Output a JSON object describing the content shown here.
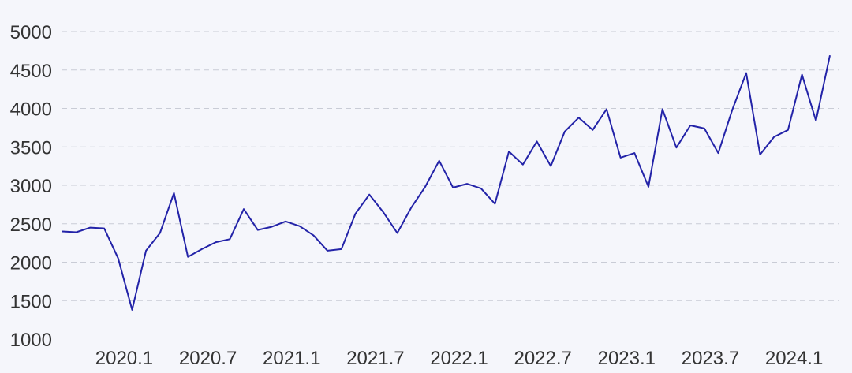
{
  "chart_data": {
    "type": "line",
    "title": "",
    "xlabel": "",
    "ylabel": "",
    "ylim": [
      1000,
      5000
    ],
    "yticks": [
      1000,
      1500,
      2000,
      2500,
      3000,
      3500,
      4000,
      4500,
      5000
    ],
    "grid": true,
    "line_color": "#2323a8",
    "xtick_labels": [
      {
        "label": "2020.1",
        "index": 5
      },
      {
        "label": "2020.7",
        "index": 11
      },
      {
        "label": "2021.1",
        "index": 17
      },
      {
        "label": "2021.7",
        "index": 23
      },
      {
        "label": "2022.1",
        "index": 29
      },
      {
        "label": "2022.7",
        "index": 35
      },
      {
        "label": "2023.1",
        "index": 41
      },
      {
        "label": "2023.7",
        "index": 47
      },
      {
        "label": "2024.1",
        "index": 53
      }
    ],
    "series": [
      {
        "values": [
          2400,
          2390,
          2450,
          2440,
          2050,
          1380,
          2150,
          2380,
          2900,
          2070,
          2170,
          2260,
          2300,
          2690,
          2420,
          2460,
          2530,
          2470,
          2350,
          2150,
          2170,
          2630,
          2880,
          2650,
          2380,
          2710,
          2980,
          3320,
          2970,
          3020,
          2960,
          2760,
          3440,
          3270,
          3570,
          3250,
          3700,
          3880,
          3720,
          3990,
          3360,
          3420,
          2980,
          3990,
          3490,
          3780,
          3740,
          3420,
          3980,
          4460,
          3400,
          3630,
          3720,
          4440,
          3840,
          4690
        ]
      }
    ]
  }
}
